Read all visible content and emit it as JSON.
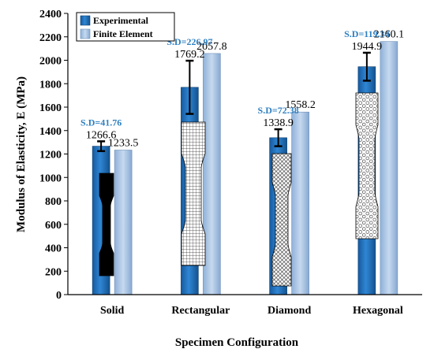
{
  "chart_data": {
    "type": "bar",
    "title": "",
    "xlabel": "Specimen Configuration",
    "ylabel": "Modulus of Elasticity, E (MPa)",
    "ylim": [
      0,
      2400
    ],
    "yticks": [
      0,
      200,
      400,
      600,
      800,
      1000,
      1200,
      1400,
      1600,
      1800,
      2000,
      2200,
      2400
    ],
    "categories": [
      "Solid",
      "Rectangular",
      "Diamond",
      "Hexagonal"
    ],
    "series": [
      {
        "name": "Experimental",
        "values": [
          1266.6,
          1769.2,
          1338.9,
          1944.9
        ],
        "color": "#1f6fbf"
      },
      {
        "name": "Finite Element",
        "values": [
          1233.5,
          2057.8,
          1558.2,
          2160.1
        ],
        "color": "#9dbde0"
      }
    ],
    "error_bars": [
      41.76,
      226.97,
      72.38,
      119.34
    ],
    "value_labels": {
      "experimental": [
        "1266.6",
        "1769.2",
        "1338.9",
        "1944.9"
      ],
      "finite_element": [
        "1233.5",
        "2057.8",
        "1558.2",
        "2160.1"
      ]
    },
    "sd_labels": [
      "S.D=41.76",
      "S.D=226.97",
      "S.D=72.38",
      "S.D=119.34"
    ],
    "sd_color": "#2e7fc1",
    "specimen_patterns": [
      "solid",
      "grid",
      "diamond",
      "hexagonal"
    ],
    "grid": false,
    "legend_position": "top-left"
  }
}
